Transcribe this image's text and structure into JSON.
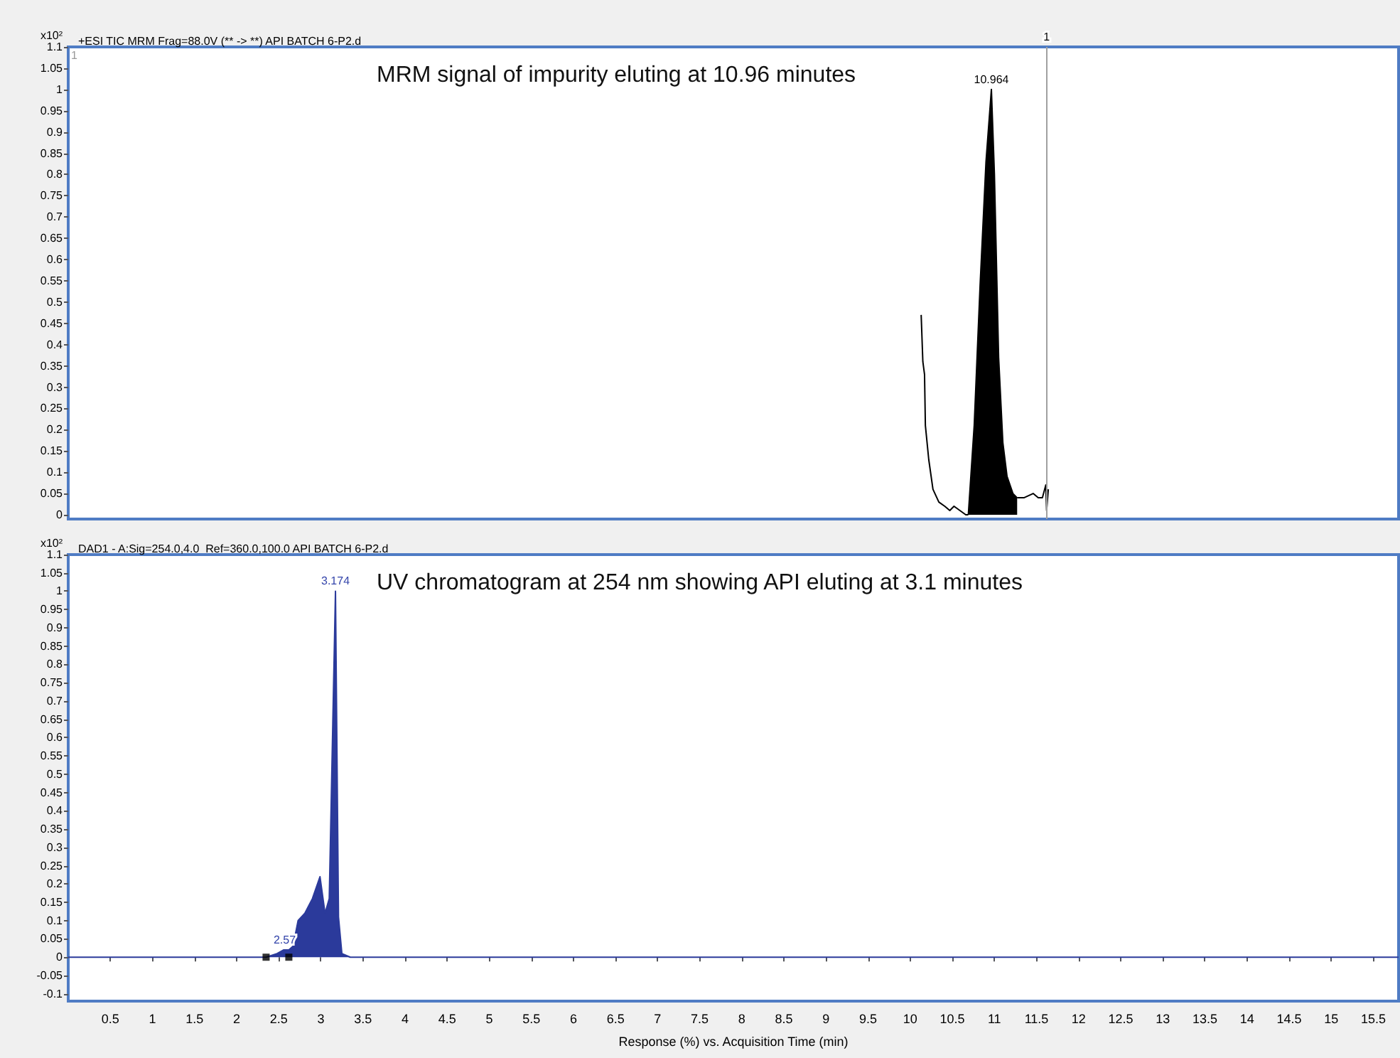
{
  "chart_data": [
    {
      "type": "line",
      "title": "+ESI TIC MRM Frag=88.0V (** -> **) API BATCH 6-P2.d",
      "ylabel": "x10²",
      "annotations": [
        "MRM signal of impurity eluting at 10.96 minutes",
        {
          "text": "10.964",
          "x": 10.964,
          "y": 1.0
        },
        "1",
        {
          "text": "1",
          "x": 11.62,
          "y": 1.1
        }
      ],
      "series": [
        {
          "color": "#000000",
          "x": [
            10.13,
            10.15,
            10.17,
            10.18,
            10.22,
            10.27,
            10.34,
            10.41,
            10.47,
            10.52,
            10.59,
            10.66,
            10.69,
            10.96,
            11.27,
            11.35,
            11.46,
            11.52,
            11.57,
            11.61,
            11.62,
            11.64
          ],
          "values": [
            0.47,
            0.36,
            0.33,
            0.21,
            0.13,
            0.06,
            0.03,
            0.02,
            0.01,
            0.02,
            0.01,
            0.0,
            0.0,
            null,
            0.04,
            0.04,
            0.05,
            0.04,
            0.04,
            0.07,
            0.01,
            0.06
          ]
        },
        {
          "type": "area",
          "color": "#000000",
          "x": [
            10.69,
            10.76,
            10.83,
            10.9,
            10.964,
            11.0,
            11.05,
            11.1,
            11.15,
            11.22,
            11.27
          ],
          "values": [
            0.0,
            0.21,
            0.54,
            0.83,
            1.0,
            0.8,
            0.37,
            0.17,
            0.09,
            0.05,
            0.04
          ]
        }
      ],
      "ref_lines": [
        {
          "axis": "x",
          "value": 11.62,
          "color": "#a0a0a0"
        }
      ],
      "xlim": [
        0,
        15.8
      ],
      "ylim": [
        -0.01,
        1.1
      ],
      "yticks": [
        0,
        0.05,
        0.1,
        0.15,
        0.2,
        0.25,
        0.3,
        0.35,
        0.4,
        0.45,
        0.5,
        0.55,
        0.6,
        0.65,
        0.7,
        0.75,
        0.8,
        0.85,
        0.9,
        0.95,
        1,
        1.05,
        1.1
      ],
      "tick_labels": "y"
    },
    {
      "type": "area",
      "title": "DAD1 - A:Sig=254.0,4.0  Ref=360.0,100.0 API BATCH 6-P2.d",
      "ylabel": "x10²",
      "xlabel": "Response (%) vs. Acquisition Time (min)",
      "annotations": [
        "UV chromatogram at 254 nm showing API eluting at 3.1 minutes",
        {
          "text": "3.174",
          "x": 3.174,
          "y": 1.0
        },
        {
          "text": "2.57",
          "x": 2.57,
          "y": 0.02
        }
      ],
      "series": [
        {
          "color": "#2b3a9b",
          "x": [
            0,
            2.35,
            2.48,
            2.56,
            2.62,
            2.67,
            2.73,
            2.81,
            2.9,
            2.99,
            3.05,
            3.1,
            3.174,
            3.21,
            3.25,
            3.35,
            15.8
          ],
          "values": [
            0,
            0,
            0.01,
            0.02,
            0.02,
            0.03,
            0.1,
            0.12,
            0.16,
            0.22,
            0.12,
            0.16,
            1.0,
            0.11,
            0.01,
            0,
            0
          ]
        },
        {
          "type": "scatter",
          "color": "#000000",
          "marker": "square",
          "x": [
            2.35,
            2.62
          ],
          "values": [
            0,
            0
          ]
        }
      ],
      "xlim": [
        0,
        15.8
      ],
      "ylim": [
        -0.12,
        1.1
      ],
      "xticks": [
        0.5,
        1,
        1.5,
        2,
        2.5,
        3,
        3.5,
        4,
        4.5,
        5,
        5.5,
        6,
        6.5,
        7,
        7.5,
        8,
        8.5,
        9,
        9.5,
        10,
        10.5,
        11,
        11.5,
        12,
        12.5,
        13,
        13.5,
        14,
        14.5,
        15,
        15.5
      ],
      "yticks": [
        -0.1,
        -0.05,
        0,
        0.05,
        0.1,
        0.15,
        0.2,
        0.25,
        0.3,
        0.35,
        0.4,
        0.45,
        0.5,
        0.55,
        0.6,
        0.65,
        0.7,
        0.75,
        0.8,
        0.85,
        0.9,
        0.95,
        1,
        1.05,
        1.1
      ]
    }
  ]
}
